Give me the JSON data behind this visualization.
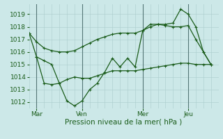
{
  "background_color": "#cce8e8",
  "grid_color": "#aacccc",
  "line_color": "#1a5c1a",
  "text_color": "#1a5c1a",
  "xlabel": "Pression niveau de la mer( hPa )",
  "ylim": [
    1011.5,
    1019.8
  ],
  "yticks": [
    1012,
    1013,
    1014,
    1015,
    1016,
    1017,
    1018,
    1019
  ],
  "xtick_labels": [
    "Mar",
    "Ven",
    "Mer",
    "Jeu"
  ],
  "xtick_positions": [
    6,
    42,
    90,
    126
  ],
  "vline_positions": [
    6,
    42,
    90,
    126
  ],
  "xlim": [
    0,
    150
  ],
  "series1_x": [
    0,
    6,
    12,
    18,
    24,
    30,
    36,
    42,
    48,
    54,
    60,
    66,
    72,
    78,
    84,
    90,
    96,
    102,
    108,
    114,
    120,
    126,
    132,
    138,
    144
  ],
  "series1_y": [
    1017.5,
    1016.8,
    1016.3,
    1016.1,
    1016.0,
    1016.0,
    1016.1,
    1016.4,
    1016.7,
    1017.0,
    1017.2,
    1017.4,
    1017.5,
    1017.5,
    1017.5,
    1017.7,
    1018.0,
    1018.2,
    1018.1,
    1018.0,
    1018.0,
    1018.1,
    1017.0,
    1016.0,
    1015.0
  ],
  "series2_x": [
    0,
    6,
    12,
    18,
    24,
    30,
    36,
    42,
    48,
    54,
    60,
    66,
    72,
    78,
    84,
    90,
    96,
    102,
    108,
    114,
    120,
    126,
    132,
    138,
    144
  ],
  "series2_y": [
    1017.5,
    1015.6,
    1015.3,
    1015.0,
    1013.5,
    1012.1,
    1011.7,
    1012.1,
    1013.0,
    1013.5,
    1014.4,
    1015.5,
    1014.8,
    1015.5,
    1014.8,
    1017.7,
    1018.2,
    1018.2,
    1018.2,
    1018.3,
    1019.4,
    1019.0,
    1018.0,
    1016.0,
    1015.0
  ],
  "series3_x": [
    6,
    12,
    18,
    24,
    30,
    36,
    42,
    48,
    54,
    60,
    66,
    72,
    78,
    84,
    90,
    96,
    102,
    108,
    114,
    120,
    126,
    132,
    138,
    144
  ],
  "series3_y": [
    1015.6,
    1013.5,
    1013.4,
    1013.5,
    1013.8,
    1014.0,
    1013.9,
    1013.9,
    1014.1,
    1014.3,
    1014.5,
    1014.5,
    1014.5,
    1014.5,
    1014.6,
    1014.7,
    1014.8,
    1014.9,
    1015.0,
    1015.1,
    1015.1,
    1015.0,
    1015.0,
    1015.0
  ]
}
